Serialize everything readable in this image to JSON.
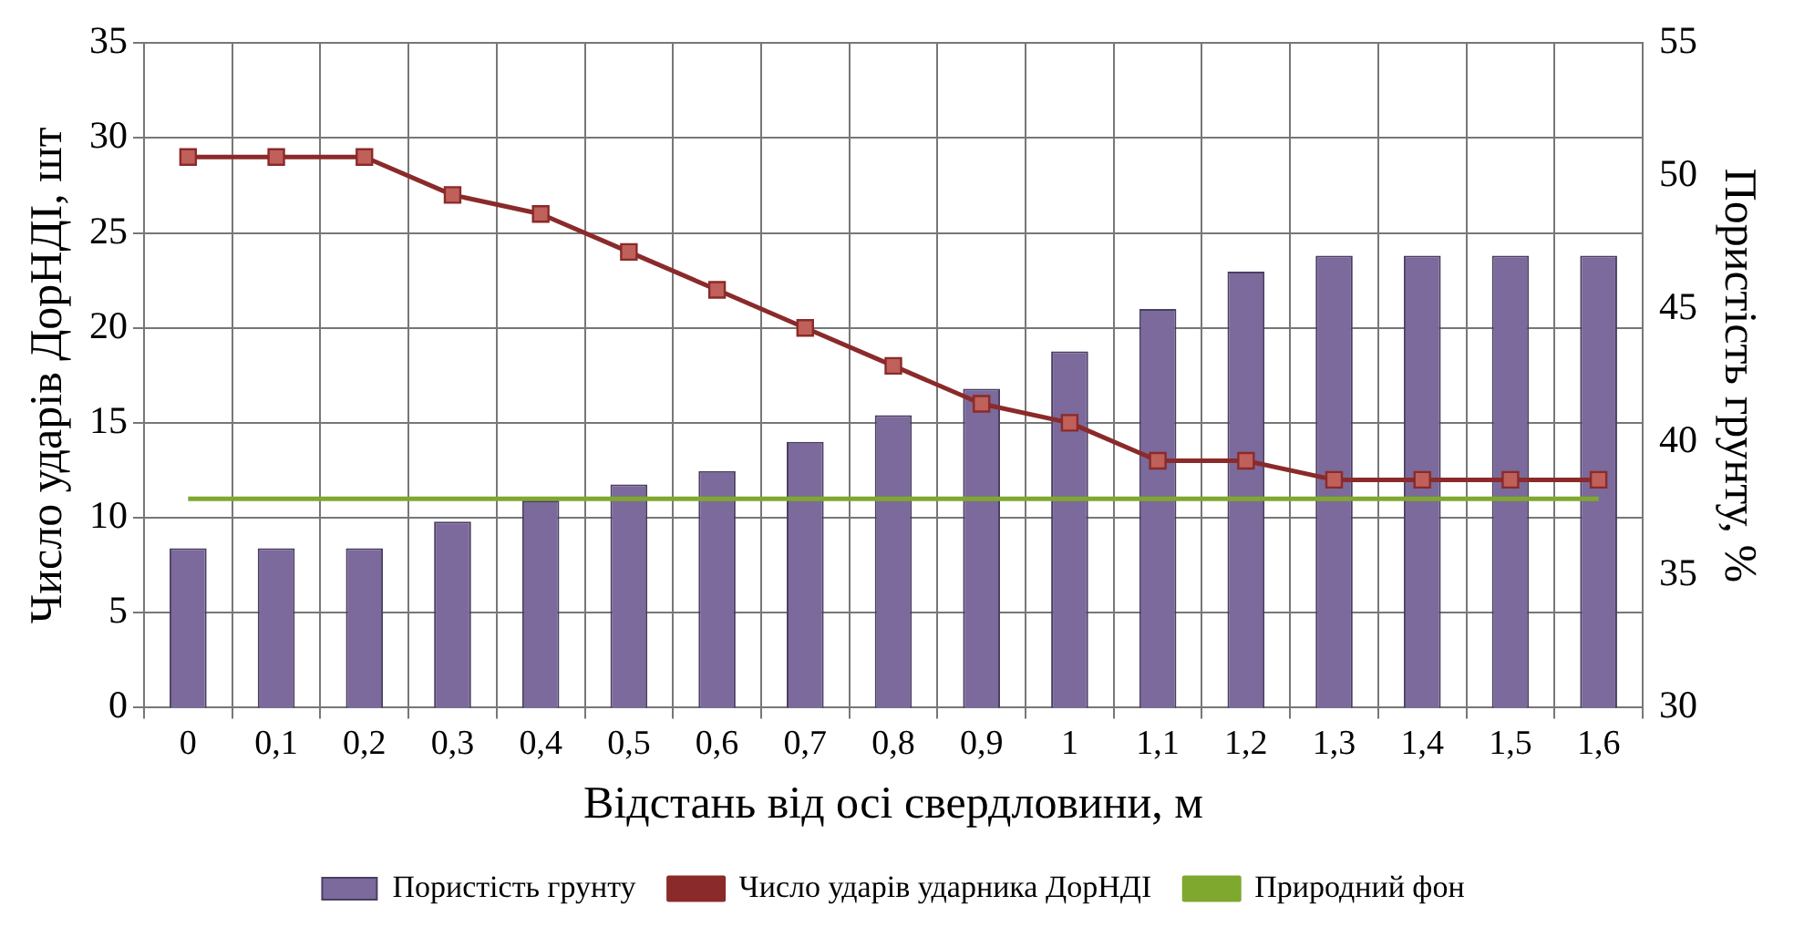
{
  "chart_data": {
    "type": "bar",
    "xlabel": "Відстань від осі свердловини, м",
    "ylabel": "Число ударів ДорНДІ, шт",
    "y2label": "Пористість грунту, %",
    "categories": [
      "0",
      "0,1",
      "0,2",
      "0,3",
      "0,4",
      "0,5",
      "0,6",
      "0,7",
      "0,8",
      "0,9",
      "1",
      "1,1",
      "1,2",
      "1,3",
      "1,4",
      "1,5",
      "1,6"
    ],
    "series": [
      {
        "name": "Пористість грунту",
        "axis": "y2",
        "color": "#7b6a9b",
        "values": [
          36,
          36,
          36,
          37,
          37.8,
          38.4,
          38.9,
          40,
          41,
          42,
          43.4,
          45,
          46.4,
          47,
          47,
          47,
          47
        ]
      },
      {
        "name": "Число ударів ударника ДорНДІ",
        "type": "line",
        "color": "#8b2a2a",
        "marker": "square",
        "values": [
          29,
          29,
          29,
          27,
          26,
          24,
          22,
          20,
          18,
          16,
          15,
          13,
          13,
          12,
          12,
          12,
          12
        ]
      },
      {
        "name": "Природний фон",
        "type": "line",
        "color": "#7fa82f",
        "marker": "none",
        "values": [
          11,
          11,
          11,
          11,
          11,
          11,
          11,
          11,
          11,
          11,
          11,
          11,
          11,
          11,
          11,
          11,
          11
        ]
      }
    ],
    "ylim": [
      0,
      35
    ],
    "yticks": [
      0,
      5,
      10,
      15,
      20,
      25,
      30,
      35
    ],
    "y2lim": [
      30,
      55
    ],
    "y2ticks": [
      30,
      35,
      40,
      45,
      50,
      55
    ],
    "grid": true,
    "legend": "bottom",
    "line_style": "solid"
  }
}
